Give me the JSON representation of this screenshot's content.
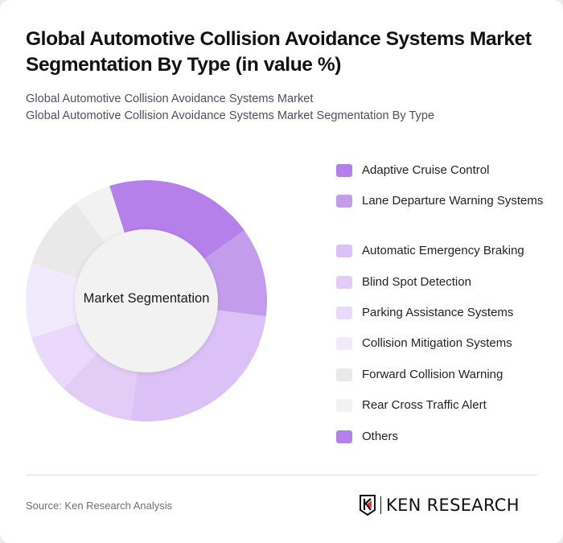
{
  "header": {
    "title": "Global Automotive Collision Avoidance Systems Market Segmentation By Type (in value %)",
    "subtitle_line1": "Global Automotive Collision Avoidance Systems Market",
    "subtitle_line2": "Global Automotive Collision Avoidance Systems Market Segmentation By Type"
  },
  "chart": {
    "center_label": "Market Segmentation"
  },
  "legend": [
    {
      "label": "Adaptive Cruise Control",
      "color": "#b580ea"
    },
    {
      "label": "Lane Departure Warning Systems",
      "color": "#c49cec"
    },
    {
      "label": "Automatic Emergency Braking",
      "color": "#dbc1f5"
    },
    {
      "label": "Blind Spot Detection",
      "color": "#e3cdf7"
    },
    {
      "label": "Parking Assistance Systems",
      "color": "#ead9fa"
    },
    {
      "label": "Collision Mitigation Systems",
      "color": "#f1eafd"
    },
    {
      "label": "Forward Collision Warning",
      "color": "#e9e9e9"
    },
    {
      "label": "Rear Cross Traffic Alert",
      "color": "#f2f2f2"
    },
    {
      "label": "Others",
      "color": "#b580ea"
    }
  ],
  "footer": {
    "source": "Source: Ken Research Analysis",
    "logo_text": "KEN RESEARCH"
  },
  "chart_data": {
    "type": "pie",
    "subtype": "donut",
    "title": "Global Automotive Collision Avoidance Systems Market Segmentation By Type (in value %)",
    "center_label": "Market Segmentation",
    "start_angle_deg": -17.8,
    "categories": [
      "Adaptive Cruise Control",
      "Lane Departure Warning Systems",
      "Automatic Emergency Braking",
      "Blind Spot Detection",
      "Parking Assistance Systems",
      "Collision Mitigation Systems",
      "Forward Collision Warning",
      "Rear Cross Traffic Alert",
      "Others"
    ],
    "values": [
      20,
      12,
      25,
      10,
      8,
      10,
      10,
      5,
      0
    ],
    "colors": [
      "#b580ea",
      "#c49cec",
      "#dbc1f5",
      "#e3cdf7",
      "#ead9fa",
      "#f1eafd",
      "#e9e9e9",
      "#f2f2f2",
      "#b580ea"
    ],
    "unit": "%",
    "legend_position": "right"
  }
}
